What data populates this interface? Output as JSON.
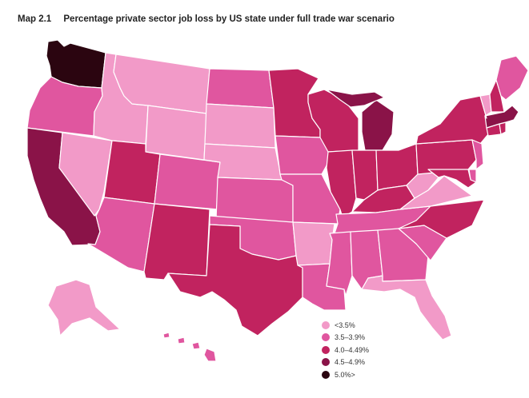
{
  "figure": {
    "id": "Map 2.1",
    "title": "Percentage private sector job loss by US state under full trade war scenario"
  },
  "legend": [
    {
      "label": "<3.5%",
      "color": "#f29ac8"
    },
    {
      "label": "3.5–3.9%",
      "color": "#e0569f"
    },
    {
      "label": "4.0–4.49%",
      "color": "#c1235f"
    },
    {
      "label": "4.5–4.9%",
      "color": "#8a1348"
    },
    {
      "label": "5.0%>",
      "color": "#2b0510"
    }
  ],
  "states": [
    {
      "name": "Washington",
      "tier": 4
    },
    {
      "name": "Oregon",
      "tier": 1
    },
    {
      "name": "California",
      "tier": 3
    },
    {
      "name": "Idaho",
      "tier": 0
    },
    {
      "name": "Nevada",
      "tier": 0
    },
    {
      "name": "Montana",
      "tier": 0
    },
    {
      "name": "Wyoming",
      "tier": 0
    },
    {
      "name": "Utah",
      "tier": 2
    },
    {
      "name": "Arizona",
      "tier": 1
    },
    {
      "name": "Colorado",
      "tier": 1
    },
    {
      "name": "New Mexico",
      "tier": 2
    },
    {
      "name": "North Dakota",
      "tier": 1
    },
    {
      "name": "South Dakota",
      "tier": 0
    },
    {
      "name": "Nebraska",
      "tier": 0
    },
    {
      "name": "Kansas",
      "tier": 1
    },
    {
      "name": "Oklahoma",
      "tier": 1
    },
    {
      "name": "Texas",
      "tier": 2
    },
    {
      "name": "Minnesota",
      "tier": 2
    },
    {
      "name": "Iowa",
      "tier": 1
    },
    {
      "name": "Missouri",
      "tier": 1
    },
    {
      "name": "Arkansas",
      "tier": 0
    },
    {
      "name": "Louisiana",
      "tier": 1
    },
    {
      "name": "Wisconsin",
      "tier": 2
    },
    {
      "name": "Illinois",
      "tier": 2
    },
    {
      "name": "Michigan",
      "tier": 3
    },
    {
      "name": "Indiana",
      "tier": 2
    },
    {
      "name": "Ohio",
      "tier": 2
    },
    {
      "name": "Kentucky",
      "tier": 2
    },
    {
      "name": "Tennessee",
      "tier": 1
    },
    {
      "name": "Mississippi",
      "tier": 1
    },
    {
      "name": "Alabama",
      "tier": 1
    },
    {
      "name": "Georgia",
      "tier": 1
    },
    {
      "name": "Florida",
      "tier": 0
    },
    {
      "name": "South Carolina",
      "tier": 1
    },
    {
      "name": "North Carolina",
      "tier": 2
    },
    {
      "name": "Virginia",
      "tier": 0
    },
    {
      "name": "West Virginia",
      "tier": 0
    },
    {
      "name": "Pennsylvania",
      "tier": 2
    },
    {
      "name": "New York",
      "tier": 2
    },
    {
      "name": "New Jersey",
      "tier": 1
    },
    {
      "name": "Maryland",
      "tier": 2
    },
    {
      "name": "Delaware",
      "tier": 1
    },
    {
      "name": "Connecticut",
      "tier": 2
    },
    {
      "name": "Rhode Island",
      "tier": 2
    },
    {
      "name": "Massachusetts",
      "tier": 3
    },
    {
      "name": "Vermont",
      "tier": 0
    },
    {
      "name": "New Hampshire",
      "tier": 2
    },
    {
      "name": "Maine",
      "tier": 1
    },
    {
      "name": "Alaska",
      "tier": 0
    },
    {
      "name": "Hawaii",
      "tier": 1
    }
  ]
}
